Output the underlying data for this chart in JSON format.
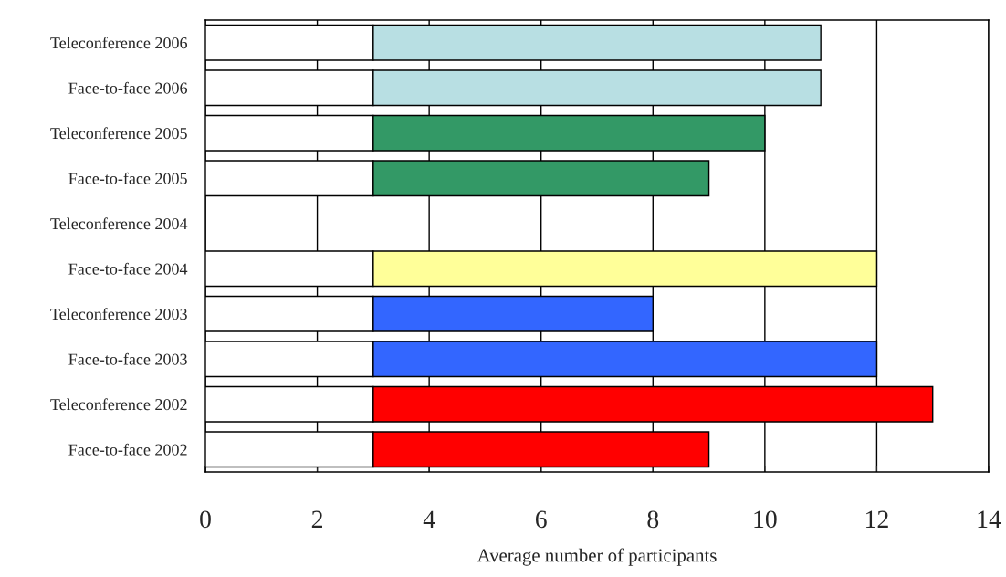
{
  "chart_data": {
    "type": "bar",
    "orientation": "horizontal",
    "stacked": true,
    "xlabel": "Average number of participants",
    "categories": [
      "Teleconference 2006",
      "Face-to-face 2006",
      "Teleconference 2005",
      "Face-to-face 2005",
      "Teleconference 2004",
      "Face-to-face 2004",
      "Teleconference 2003",
      "Face-to-face 2003",
      "Teleconference 2002",
      "Face-to-face 2002"
    ],
    "series": [
      {
        "color": "#ffffff",
        "values": [
          3,
          3,
          3,
          3,
          null,
          3,
          3,
          3,
          3,
          3
        ]
      },
      {
        "colors": [
          "#b8dfe3",
          "#b8dfe3",
          "#339966",
          "#339966",
          null,
          "#ffff99",
          "#3366ff",
          "#3366ff",
          "#ff0000",
          "#ff0000"
        ],
        "values": [
          8,
          8,
          7,
          6,
          null,
          9,
          5,
          9,
          10,
          6
        ]
      }
    ],
    "xlim": [
      0,
      14
    ],
    "xticks": [
      0,
      2,
      4,
      6,
      8,
      10,
      12,
      14
    ],
    "grid": "x",
    "legend": false
  }
}
